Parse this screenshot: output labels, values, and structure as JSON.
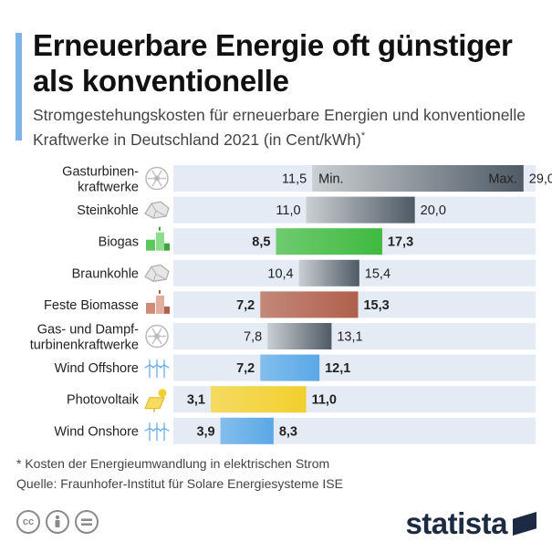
{
  "title": "Erneuerbare Energie oft günstiger als konventionelle",
  "subtitle": "Stromgestehungskosten für erneuerbare Energien und konventionelle Kraftwerke in Deutschland 2021 (in Cent/kWh)",
  "subtitle_mark": "*",
  "footnote": "* Kosten der Energieumwandlung in elektrischen Strom",
  "source": "Quelle: Fraunhofer-Institut für Solare Energiesysteme ISE",
  "brand": "statista",
  "license_icons": [
    "cc-icon",
    "person-icon",
    "equals-icon"
  ],
  "chart_data": {
    "type": "bar",
    "orientation": "horizontal-range",
    "x_max": 30,
    "min_label": "Min.",
    "max_label": "Max.",
    "categories": [
      {
        "label": "Gasturbinen-kraftwerke",
        "lines": [
          "Gasturbinen-",
          "kraftwerke"
        ],
        "min": 11.5,
        "max": 29.0,
        "min_text": "11,5",
        "max_text": "29,0",
        "color": "#8a949c",
        "icon": "turbine-icon",
        "renewable": false
      },
      {
        "label": "Steinkohle",
        "lines": [
          "Steinkohle"
        ],
        "min": 11.0,
        "max": 20.0,
        "min_text": "11,0",
        "max_text": "20,0",
        "color": "#8a949c",
        "icon": "coal-icon",
        "renewable": false
      },
      {
        "label": "Biogas",
        "lines": [
          "Biogas"
        ],
        "min": 8.5,
        "max": 17.3,
        "min_text": "8,5",
        "max_text": "17,3",
        "color": "#3fba3f",
        "icon": "biogas-icon",
        "renewable": true
      },
      {
        "label": "Braunkohle",
        "lines": [
          "Braunkohle"
        ],
        "min": 10.4,
        "max": 15.4,
        "min_text": "10,4",
        "max_text": "15,4",
        "color": "#8a949c",
        "icon": "coal-icon",
        "renewable": false
      },
      {
        "label": "Feste Biomasse",
        "lines": [
          "Feste Biomasse"
        ],
        "min": 7.2,
        "max": 15.3,
        "min_text": "7,2",
        "max_text": "15,3",
        "color": "#b0604c",
        "icon": "biomass-icon",
        "renewable": true
      },
      {
        "label": "Gas- und Dampf-turbinenkraftwerke",
        "lines": [
          "Gas- und Dampf-",
          "turbinenkraftwerke"
        ],
        "min": 7.8,
        "max": 13.1,
        "min_text": "7,8",
        "max_text": "13,1",
        "color": "#8a949c",
        "icon": "turbine-icon",
        "renewable": false
      },
      {
        "label": "Wind Offshore",
        "lines": [
          "Wind Offshore"
        ],
        "min": 7.2,
        "max": 12.1,
        "min_text": "7,2",
        "max_text": "12,1",
        "color": "#5aa8e6",
        "icon": "wind-icon",
        "renewable": true
      },
      {
        "label": "Photovoltaik",
        "lines": [
          "Photovoltaik"
        ],
        "min": 3.1,
        "max": 11.0,
        "min_text": "3,1",
        "max_text": "11,0",
        "color": "#f2cf2e",
        "icon": "solar-icon",
        "renewable": true
      },
      {
        "label": "Wind Onshore",
        "lines": [
          "Wind Onshore"
        ],
        "min": 3.9,
        "max": 8.3,
        "min_text": "3,9",
        "max_text": "8,3",
        "color": "#5aa8e6",
        "icon": "wind-icon",
        "renewable": true
      }
    ]
  }
}
